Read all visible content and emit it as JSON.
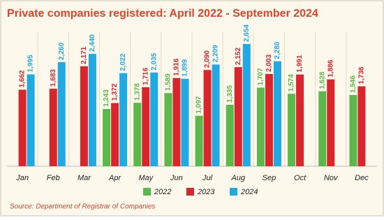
{
  "chart_data": {
    "type": "bar",
    "title": "Private companies registered: April 2022 - September 2024",
    "source": "Source:  Department of Registrar of Companies",
    "categories": [
      "Jan",
      "Feb",
      "Mar",
      "Apr",
      "May",
      "Jun",
      "Jul",
      "Aug",
      "Sep",
      "Oct",
      "Nov",
      "Dec"
    ],
    "ylim": [
      0,
      2700
    ],
    "series": [
      {
        "name": "2022",
        "color": "#5cb84a",
        "values": [
          null,
          null,
          null,
          1243,
          1378,
          1589,
          1097,
          1335,
          1707,
          1574,
          1628,
          1546
        ],
        "value_labels": [
          null,
          null,
          null,
          "1,243",
          "1,378",
          "1,589",
          "1,097",
          "1,335",
          "1,707",
          "1,574",
          "1,628",
          "1,546"
        ]
      },
      {
        "name": "2023",
        "color": "#d9262c",
        "values": [
          1662,
          1683,
          2171,
          1372,
          1716,
          1916,
          2090,
          2152,
          2003,
          1991,
          1886,
          1736
        ],
        "value_labels": [
          "1,662",
          "1,683",
          "2,171",
          "1,372",
          "1,716",
          "1,916",
          "2,090",
          "2,152",
          "2,003",
          "1,991",
          "1,886",
          "1,736"
        ]
      },
      {
        "name": "2024",
        "color": "#22a9e1",
        "values": [
          1995,
          2260,
          2440,
          2022,
          2035,
          1899,
          2209,
          2654,
          2280,
          null,
          null,
          null
        ],
        "value_labels": [
          "1,995",
          "2,260",
          "2,440",
          "2,022",
          "2,035",
          "1,899",
          "2,209",
          "2,654",
          "2,280",
          null,
          null,
          null
        ]
      }
    ]
  }
}
